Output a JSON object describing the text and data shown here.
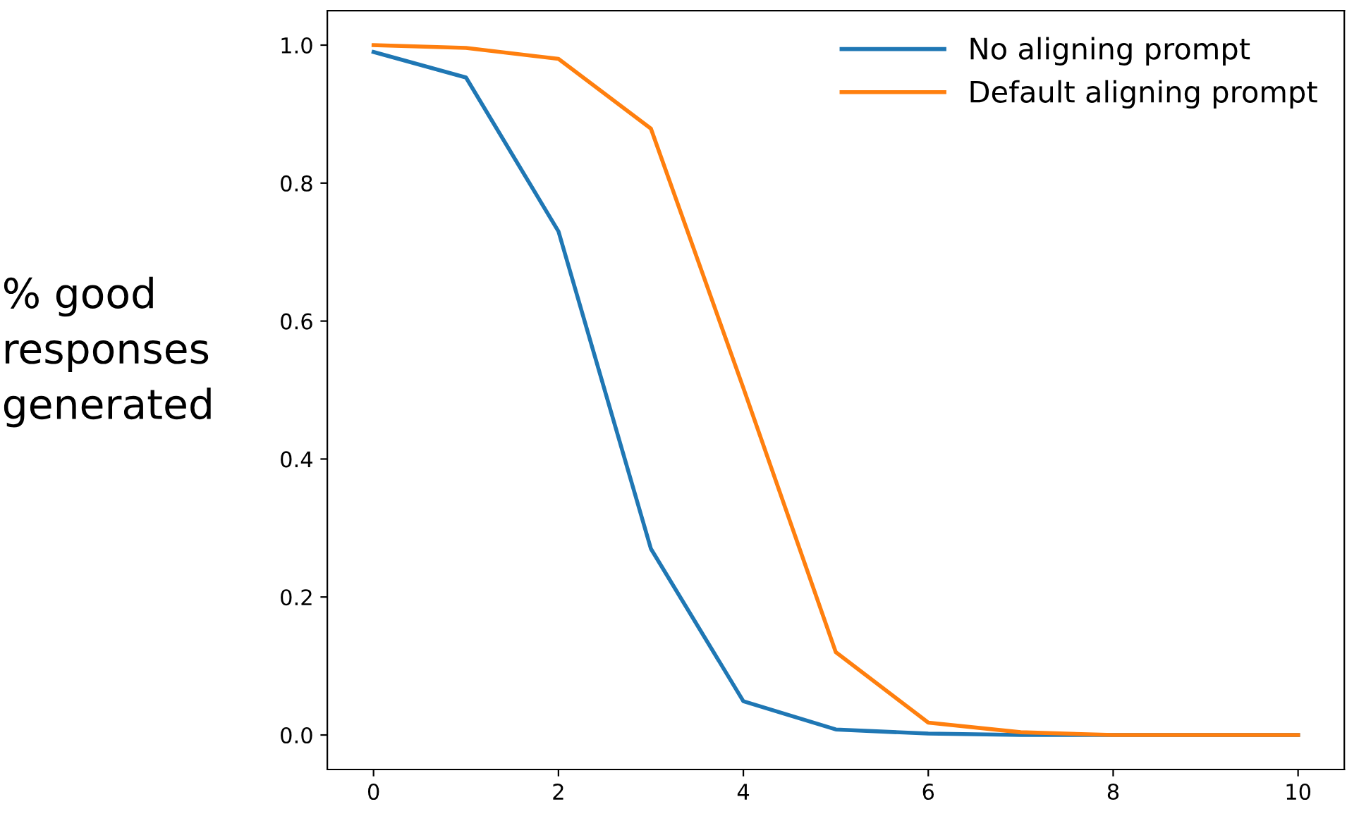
{
  "chart_data": {
    "type": "line",
    "ylabel": "% good\nresponses\ngenerated",
    "x": [
      0,
      1,
      2,
      3,
      4,
      5,
      6,
      7,
      8,
      9,
      10
    ],
    "series": [
      {
        "name": "No aligning prompt",
        "color": "#1f77b4",
        "values": [
          0.99,
          0.953,
          0.73,
          0.27,
          0.049,
          0.008,
          0.002,
          0,
          0,
          0,
          0
        ]
      },
      {
        "name": "Default aligning prompt",
        "color": "#ff7f0e",
        "values": [
          1.0,
          0.996,
          0.98,
          0.879,
          0.503,
          0.12,
          0.018,
          0.004,
          0,
          0,
          0
        ]
      }
    ],
    "xlim": [
      -0.5,
      10.5
    ],
    "ylim": [
      -0.05,
      1.05
    ],
    "xticks": [
      0,
      2,
      4,
      6,
      8,
      10
    ],
    "yticks": [
      {
        "value": 0,
        "label": "0.0"
      },
      0.2,
      0.4,
      0.6,
      0.8,
      {
        "value": 1,
        "label": "1.0"
      }
    ],
    "grid": false,
    "legend": "top right",
    "marker": "none",
    "line_style": "solid"
  }
}
